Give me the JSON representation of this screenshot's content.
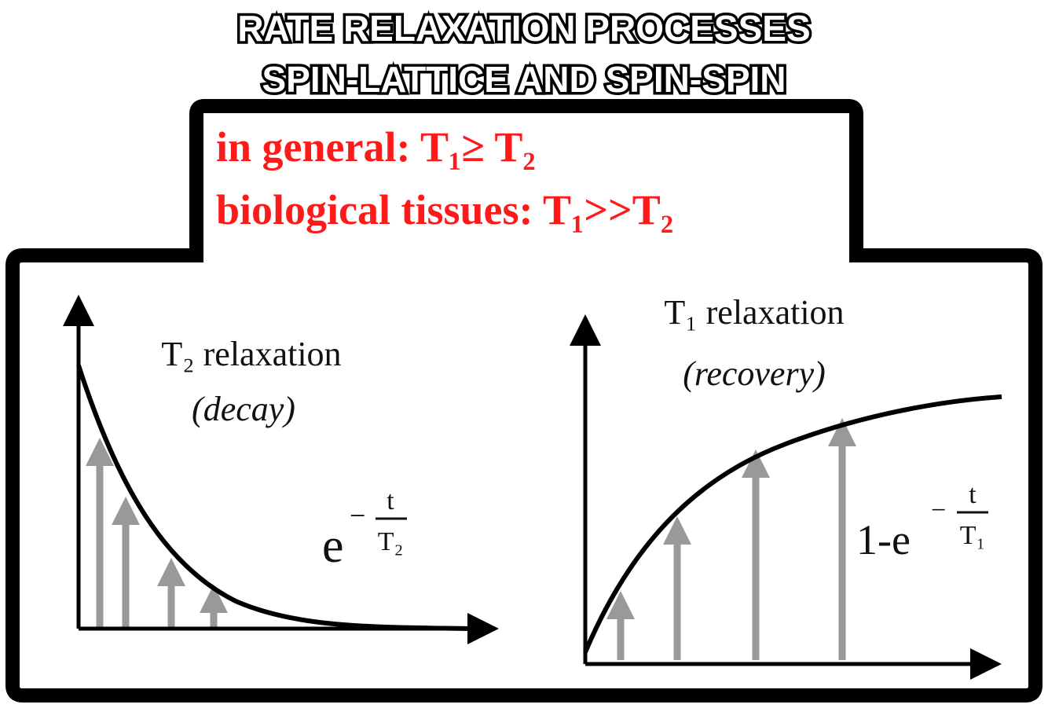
{
  "header": {
    "title_lines": [
      "RATE RELAXATION PROCESSES",
      "SPIN-LATTICE AND SPIN-SPIN"
    ]
  },
  "notes": [
    "in general: T₁≥ T₂",
    "biological tissues: T₁>>T₂"
  ],
  "panels": [
    {
      "title": "T₂ relaxation",
      "subtitle": "(decay)",
      "formula": {
        "base": "e",
        "sign": "−",
        "numerator": "t",
        "denominator": "T₂"
      }
    },
    {
      "title": "T₁ relaxation",
      "subtitle": "(recovery)",
      "formula": {
        "base": "1-e",
        "sign": "−",
        "numerator": "t",
        "denominator": "T₁"
      }
    }
  ]
}
